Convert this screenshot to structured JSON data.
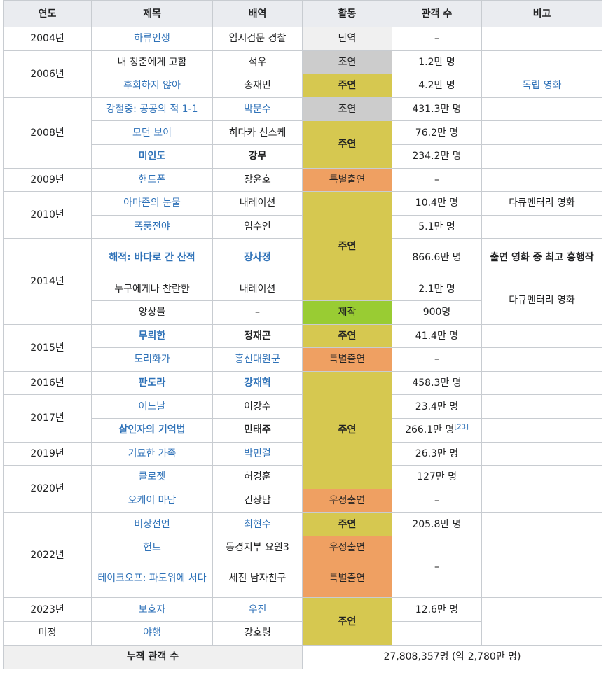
{
  "table": {
    "header": [
      "연도",
      "제목",
      "배역",
      "활동",
      "관객 수",
      "비고"
    ],
    "rows": [
      [
        "2004년",
        "하류인생",
        "임시검문 경찰",
        "단역",
        "–"
      ],
      [
        "2006년",
        "내 청춘에게 고함",
        "석우",
        "조연",
        "1.2만 명"
      ],
      [
        "후회하지 않아",
        "송재민",
        "주연",
        "4.2만 명",
        "독립 영화"
      ],
      [
        "2008년",
        "강철중: 공공의 적 1-1",
        "박문수",
        "조연",
        "431.3만 명"
      ],
      [
        "모던 보이",
        "히다카 신스케",
        "주연",
        "76.2만 명"
      ],
      [
        "미인도",
        "강무",
        "234.2만 명"
      ],
      [
        "2009년",
        "핸드폰",
        "장윤호",
        "특별출연",
        "–"
      ],
      [
        "2010년",
        "아마존의 눈물",
        "내레이션",
        "주연",
        "10.4만 명",
        "다큐멘터리 영화"
      ],
      [
        "폭풍전야",
        "임수인",
        "5.1만 명"
      ],
      [
        "2014년",
        "해적: 바다로 간 산적",
        "장사정",
        "866.6만 명",
        "출연 영화 중 최고 흥행작"
      ],
      [
        "누구에게나 찬란한",
        "내레이션",
        "2.1만 명",
        "다큐멘터리 영화"
      ],
      [
        "앙상블",
        "–",
        "제작",
        "900명"
      ],
      [
        "2015년",
        "무뢰한",
        "정재곤",
        "주연",
        "41.4만 명"
      ],
      [
        "도리화가",
        "흥선대원군",
        "특별출연",
        "–"
      ],
      [
        "2016년",
        "판도라",
        "강재혁",
        "주연",
        "458.3만 명"
      ],
      [
        "2017년",
        "어느날",
        "이강수",
        "23.4만 명"
      ],
      [
        "살인자의 기억법",
        "민태주",
        "266.1만 명",
        "[23]"
      ],
      [
        "2019년",
        "기묘한 가족",
        "박민걸",
        "26.3만 명"
      ],
      [
        "2020년",
        "클로젯",
        "허경훈",
        "127만 명"
      ],
      [
        "오케이 마담",
        "긴장남",
        "우정출연",
        "–"
      ],
      [
        "2022년",
        "비상선언",
        "최현수",
        "주연",
        "205.8만 명"
      ],
      [
        "헌트",
        "동경지부 요원3",
        "우정출연",
        "–"
      ],
      [
        "테이크오프: 파도위에 서다",
        "세진 남자친구",
        "특별출연"
      ],
      [
        "2023년",
        "보호자",
        "우진",
        "주연",
        "12.6만 명"
      ],
      [
        "미정",
        "야행",
        "강호령"
      ]
    ],
    "footer": [
      "누적 관객 수",
      "27,808,357명 (약 2,780만 명)"
    ]
  }
}
